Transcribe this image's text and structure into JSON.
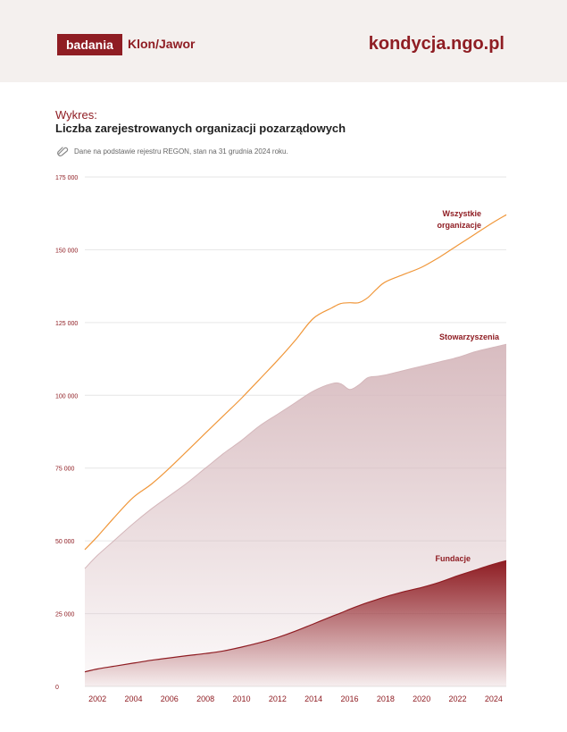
{
  "header": {
    "logo_box": "badania",
    "logo_text": "Klon/Jawor",
    "site": "kondycja.ngo.pl"
  },
  "chart_header": {
    "label": "Wykres:",
    "title": "Liczba zarejestrowanych organizacji pozarządowych",
    "note": "Dane na podstawie rejestru REGON, stan na 31 grudnia 2024 roku."
  },
  "colors": {
    "brand": "#8f1d23",
    "all_line": "#f0973a",
    "assoc_fill": "#dcc3c6",
    "found_fill": "#8f1d23"
  },
  "chart_data": {
    "type": "area",
    "title": "Liczba zarejestrowanych organizacji pozarządowych",
    "xlabel": "",
    "ylabel": "",
    "ylim": [
      0,
      175000
    ],
    "xlim": [
      2001.3,
      2024.7
    ],
    "grid": true,
    "y_ticks": [
      0,
      25000,
      50000,
      75000,
      100000,
      125000,
      150000,
      175000
    ],
    "y_tick_labels": [
      "0",
      "25 000",
      "50 000",
      "75 000",
      "100 000",
      "125 000",
      "150 000",
      "175 000"
    ],
    "x_ticks": [
      2002,
      2004,
      2006,
      2008,
      2010,
      2012,
      2014,
      2016,
      2018,
      2020,
      2022,
      2024
    ],
    "x_tick_labels": [
      "2002",
      "2004",
      "2006",
      "2008",
      "2010",
      "2012",
      "2014",
      "2016",
      "2018",
      "2020",
      "2022",
      "2024"
    ],
    "x": [
      2001.3,
      2002,
      2003,
      2004,
      2005,
      2006,
      2007,
      2008,
      2009,
      2010,
      2011,
      2012,
      2013,
      2014,
      2015,
      2015.5,
      2016,
      2016.5,
      2017,
      2017.5,
      2018,
      2019,
      2020,
      2021,
      2022,
      2023,
      2024,
      2024.7
    ],
    "series": [
      {
        "name": "Wszystkie organizacje",
        "kind": "line",
        "color": "#f0973a",
        "values": [
          47000,
          51500,
          58500,
          65000,
          69500,
          75000,
          81000,
          87000,
          93000,
          99000,
          105500,
          112000,
          119000,
          126500,
          130000,
          131500,
          131800,
          131800,
          133500,
          136500,
          139000,
          141500,
          144000,
          147500,
          151500,
          155500,
          159500,
          162000
        ]
      },
      {
        "name": "Stowarzyszenia",
        "kind": "area",
        "color": "#dcc3c6",
        "values": [
          40500,
          45000,
          50500,
          56000,
          61000,
          65500,
          70000,
          75000,
          80000,
          84500,
          89500,
          93500,
          97500,
          101500,
          104000,
          104000,
          102000,
          103500,
          106000,
          106500,
          107000,
          108500,
          110000,
          111500,
          113000,
          115000,
          116500,
          117500
        ]
      },
      {
        "name": "Fundacje",
        "kind": "area",
        "color": "#8f1d23",
        "values": [
          5000,
          6000,
          7000,
          8000,
          9000,
          9800,
          10600,
          11300,
          12200,
          13500,
          15000,
          16800,
          19000,
          21500,
          24000,
          25200,
          26500,
          27700,
          28800,
          29800,
          30800,
          32500,
          34000,
          35800,
          38000,
          40000,
          42000,
          43200
        ]
      }
    ],
    "annotations": [
      {
        "series": "Wszystkie organizacje",
        "lines": [
          "Wszystkie",
          "organizacje"
        ]
      },
      {
        "series": "Stowarzyszenia",
        "lines": [
          "Stowarzyszenia"
        ]
      },
      {
        "series": "Fundacje",
        "lines": [
          "Fundacje"
        ]
      }
    ]
  }
}
